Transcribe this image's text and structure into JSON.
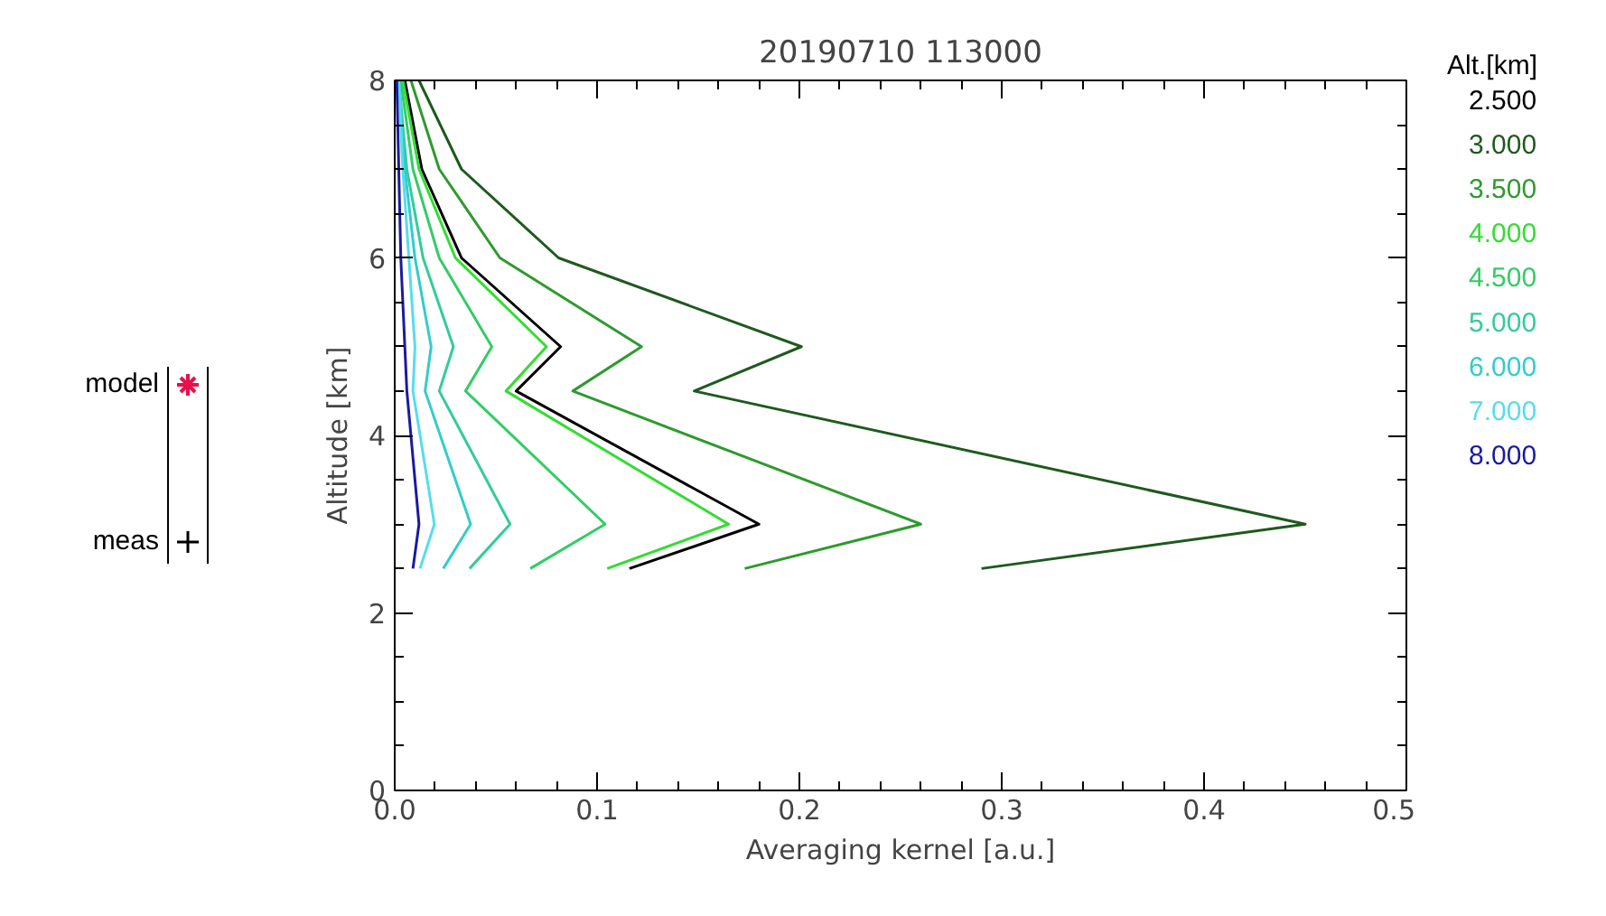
{
  "chart_data": {
    "type": "line",
    "title": "20190710 113000",
    "xlabel": "Averaging kernel [a.u.]",
    "ylabel": "Altitude [km]",
    "legend_title": "Alt.[km]",
    "legend": "right",
    "grid": false,
    "marker": "none",
    "line_style": "solid",
    "xlim": [
      0,
      0.5
    ],
    "ylim": [
      0,
      8
    ],
    "xticks": [
      {
        "value": 0,
        "label": "0.0"
      },
      {
        "value": 0.1,
        "label": "0.1"
      },
      {
        "value": 0.2,
        "label": "0.2"
      },
      {
        "value": 0.3,
        "label": "0.3"
      },
      {
        "value": 0.4,
        "label": "0.4"
      },
      {
        "value": 0.5,
        "label": "0.5"
      }
    ],
    "yticks": [
      0,
      2,
      4,
      6,
      8
    ],
    "annotations": [
      "model",
      "meas"
    ],
    "series": [
      {
        "name": "2.500",
        "color": "#000000",
        "x": [
          0.116,
          0.18,
          0.06,
          0.082,
          0.033,
          0.0134,
          0.005
        ],
        "values": [
          2.5,
          3,
          4.5,
          5,
          6,
          7,
          8
        ]
      },
      {
        "name": "3.000",
        "color": "#1e5a1e",
        "x": [
          0.29,
          0.45,
          0.148,
          0.201,
          0.081,
          0.033,
          0.012
        ],
        "values": [
          2.5,
          3,
          4.5,
          5,
          6,
          7,
          8
        ]
      },
      {
        "name": "3.500",
        "color": "#2e9a2e",
        "x": [
          0.173,
          0.26,
          0.088,
          0.122,
          0.052,
          0.022,
          0.008
        ],
        "values": [
          2.5,
          3,
          4.5,
          5,
          6,
          7,
          8
        ]
      },
      {
        "name": "4.000",
        "color": "#33dd33",
        "x": [
          0.105,
          0.165,
          0.055,
          0.075,
          0.03,
          0.012,
          0.004
        ],
        "values": [
          2.5,
          3,
          4.5,
          5,
          6,
          7,
          8
        ]
      },
      {
        "name": "4.500",
        "color": "#33cc66",
        "x": [
          0.067,
          0.104,
          0.035,
          0.048,
          0.022,
          0.009,
          0.003
        ],
        "values": [
          2.5,
          3,
          4.5,
          5,
          6,
          7,
          8
        ]
      },
      {
        "name": "5.000",
        "color": "#33cc99",
        "x": [
          0.037,
          0.057,
          0.022,
          0.029,
          0.014,
          0.006,
          0.002
        ],
        "values": [
          2.5,
          3,
          4.5,
          5,
          6,
          7,
          8
        ]
      },
      {
        "name": "6.000",
        "color": "#33cccc",
        "x": [
          0.024,
          0.0375,
          0.015,
          0.018,
          0.01,
          0.005,
          0.002
        ],
        "values": [
          2.5,
          3,
          4.5,
          5,
          6,
          7,
          8
        ]
      },
      {
        "name": "7.000",
        "color": "#55ddee",
        "x": [
          0.0125,
          0.0196,
          0.009,
          0.01,
          0.007,
          0.004,
          0.002
        ],
        "values": [
          2.5,
          3,
          4.5,
          5,
          6,
          7,
          8
        ]
      },
      {
        "name": "8.000",
        "color": "#1a1aa0",
        "x": [
          0.009,
          0.012,
          0.006,
          0.005,
          0.003,
          0.002,
          0.001
        ],
        "values": [
          2.5,
          3,
          4.5,
          5,
          6,
          7,
          8
        ]
      }
    ]
  }
}
